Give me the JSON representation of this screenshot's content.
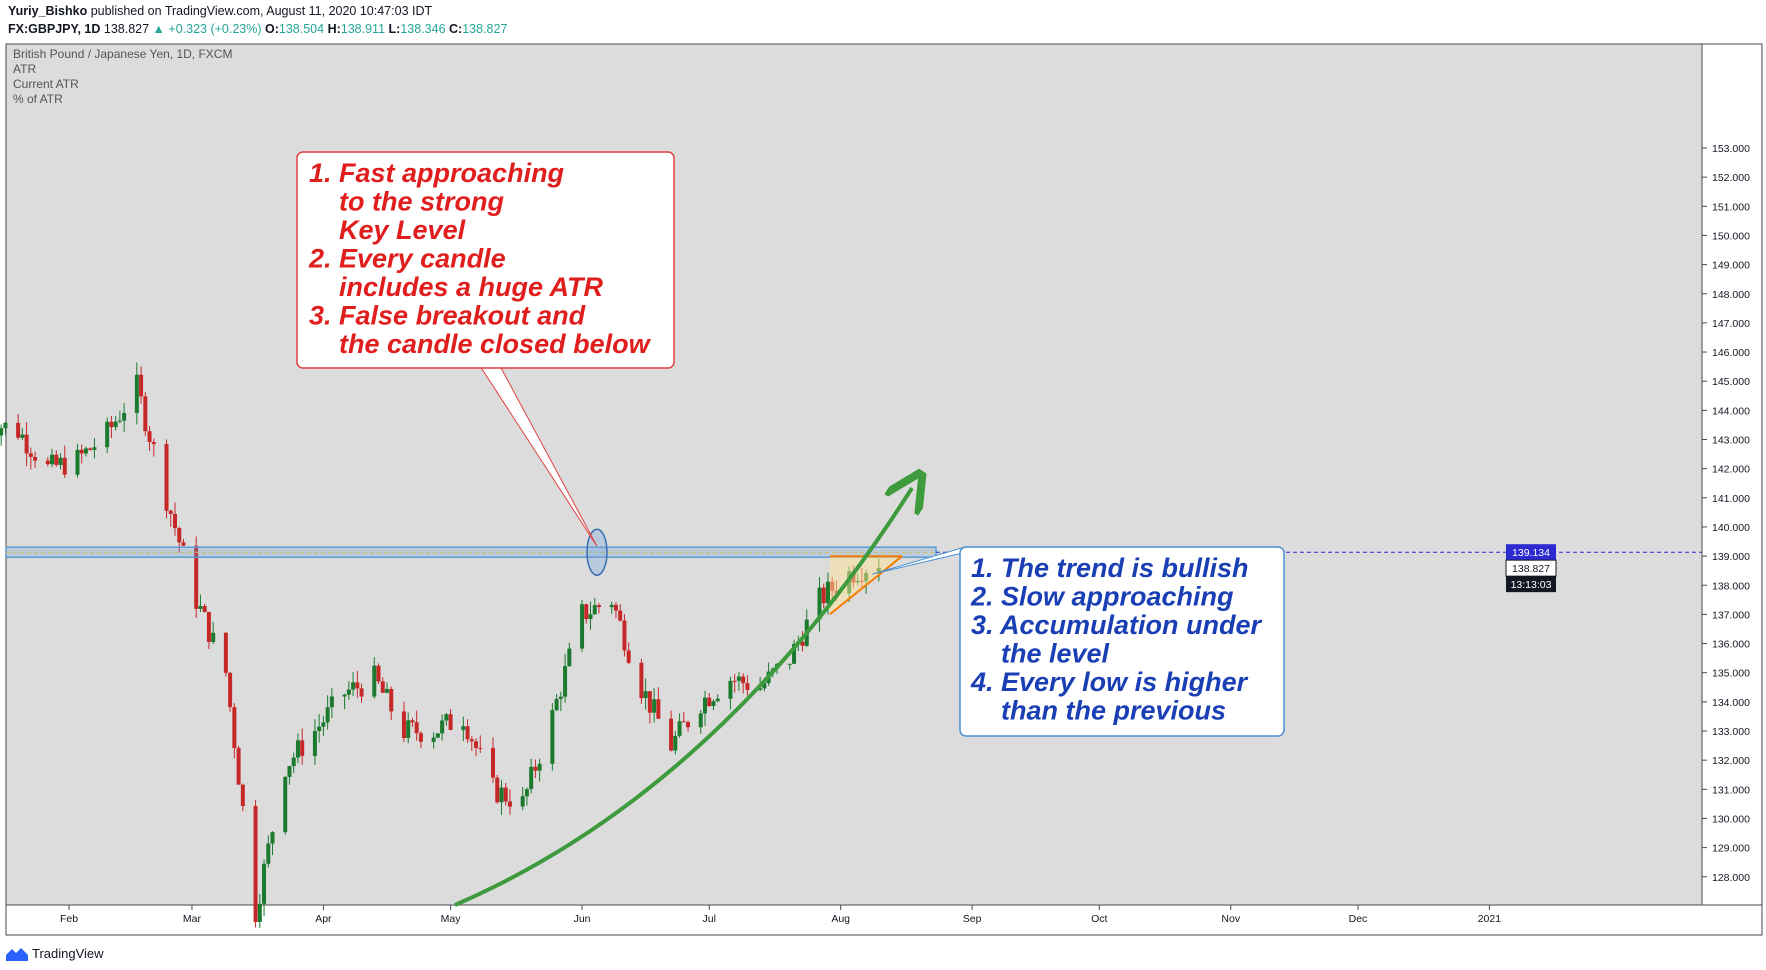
{
  "header": {
    "author": "Yuriy_Bishko",
    "published": "published on TradingView.com, August 11, 2020 10:47:03 IDT",
    "symbol": "FX:GBPJPY, 1D",
    "last": "138.827",
    "change": "+0.323 (+0.23%)",
    "o_label": "O:",
    "o": "138.504",
    "h_label": "H:",
    "h": "138.911",
    "l_label": "L:",
    "l": "138.346",
    "c_label": "C:",
    "c": "138.827"
  },
  "legend": {
    "title": "British Pound / Japanese Yen, 1D, FXCM",
    "lines": [
      "ATR",
      "Current ATR",
      "% of ATR"
    ]
  },
  "annotations": {
    "red_box": [
      "1. Fast approaching",
      "    to the strong",
      "    Key Level",
      "2. Every candle",
      "    includes a huge ATR",
      "3. False breakout and",
      "    the candle closed below"
    ],
    "blue_box": [
      "1. The trend is bullish",
      "2. Slow approaching",
      "3. Accumulation under",
      "    the level",
      "4. Every low is higher",
      "    than the previous"
    ]
  },
  "price_labels": {
    "key_level": "139.134",
    "last": "138.827",
    "timer": "13:13:03"
  },
  "footer": {
    "brand": "TradingView"
  },
  "colors": {
    "up": "#26a69a",
    "bull_candle": "#1b7a2e",
    "bear_candle": "#c62828",
    "red_text": "#e01e1e",
    "blue_text": "#1a3fb5",
    "trend_arrow": "#3d9a3d",
    "key_zone": "#5b9bd5",
    "triangle": "#f57c00",
    "plot_bg": "#dcdcdc"
  },
  "chart_data": {
    "type": "candlestick",
    "title": "British Pound / Japanese Yen, 1D, FXCM",
    "symbol": "FX:GBPJPY",
    "timeframe": "1D",
    "x_ticks": [
      "Feb",
      "Mar",
      "Apr",
      "May",
      "Jun",
      "Jul",
      "Aug",
      "Sep",
      "Oct",
      "Nov",
      "Dec",
      "2021"
    ],
    "y_ticks": [
      128,
      129,
      130,
      131,
      132,
      133,
      134,
      135,
      136,
      137,
      138,
      139,
      140,
      141,
      142,
      143,
      144,
      145,
      146,
      147,
      148,
      149,
      150,
      151,
      152,
      153
    ],
    "ylim": [
      127.5,
      153.3
    ],
    "key_level": 139.134,
    "last_price": 138.827,
    "approx_closes": [
      {
        "date": "2020-01-13",
        "close": 143.6
      },
      {
        "date": "2020-01-20",
        "close": 143.3
      },
      {
        "date": "2020-01-27",
        "close": 142.0
      },
      {
        "date": "2020-02-03",
        "close": 142.3
      },
      {
        "date": "2020-02-10",
        "close": 143.2
      },
      {
        "date": "2020-02-17",
        "close": 144.8
      },
      {
        "date": "2020-02-24",
        "close": 141.0
      },
      {
        "date": "2020-03-02",
        "close": 137.5
      },
      {
        "date": "2020-03-09",
        "close": 135.0
      },
      {
        "date": "2020-03-16",
        "close": 126.8
      },
      {
        "date": "2020-03-23",
        "close": 131.8
      },
      {
        "date": "2020-03-30",
        "close": 133.0
      },
      {
        "date": "2020-04-06",
        "close": 134.3
      },
      {
        "date": "2020-04-13",
        "close": 134.8
      },
      {
        "date": "2020-04-20",
        "close": 133.0
      },
      {
        "date": "2020-04-27",
        "close": 133.0
      },
      {
        "date": "2020-05-04",
        "close": 133.5
      },
      {
        "date": "2020-05-11",
        "close": 131.0
      },
      {
        "date": "2020-05-18",
        "close": 130.5
      },
      {
        "date": "2020-05-25",
        "close": 133.5
      },
      {
        "date": "2020-06-01",
        "close": 137.0
      },
      {
        "date": "2020-06-08",
        "close": 137.5
      },
      {
        "date": "2020-06-15",
        "close": 134.5
      },
      {
        "date": "2020-06-22",
        "close": 132.5
      },
      {
        "date": "2020-06-29",
        "close": 134.0
      },
      {
        "date": "2020-07-06",
        "close": 134.8
      },
      {
        "date": "2020-07-13",
        "close": 134.5
      },
      {
        "date": "2020-07-20",
        "close": 135.5
      },
      {
        "date": "2020-07-27",
        "close": 137.5
      },
      {
        "date": "2020-08-03",
        "close": 138.4
      },
      {
        "date": "2020-08-10",
        "close": 138.827
      }
    ]
  }
}
